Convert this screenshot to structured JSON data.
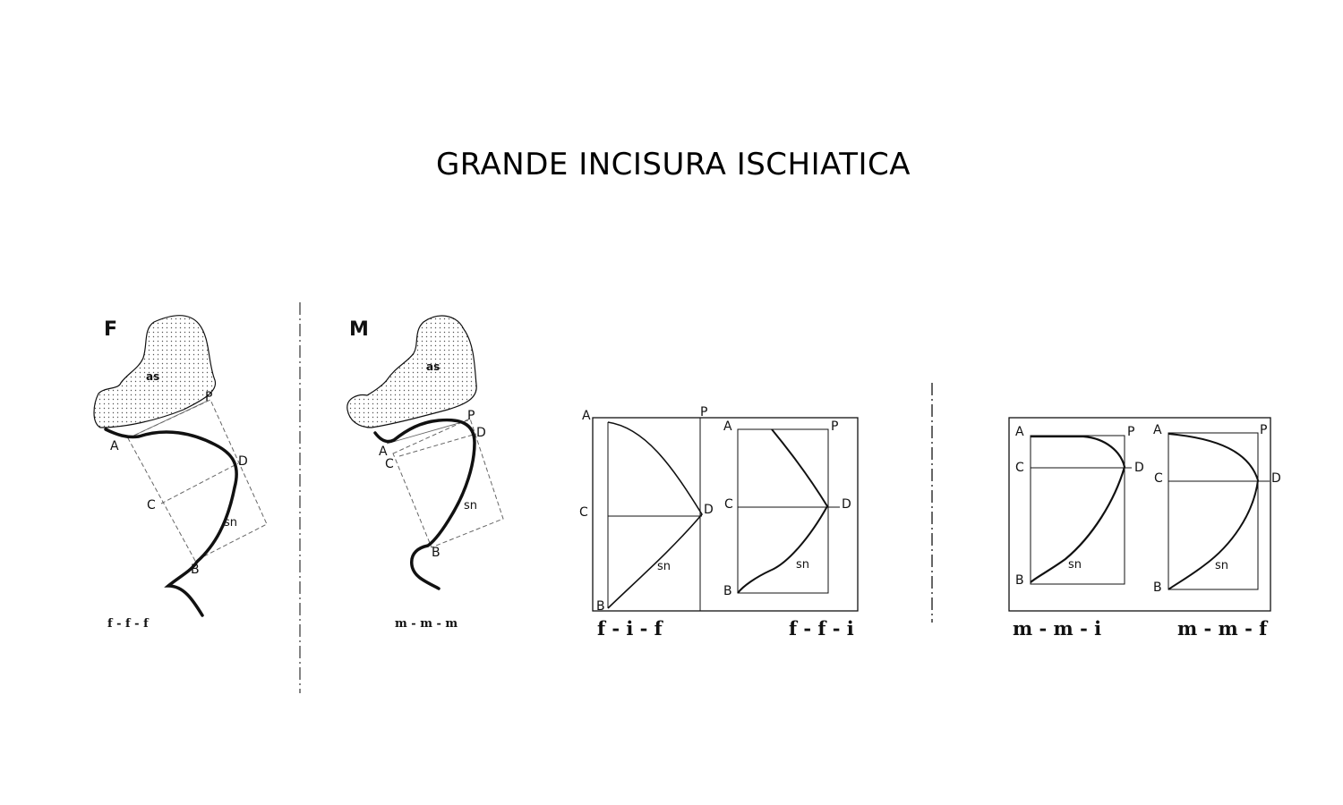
{
  "title": "GRANDE INCISURA ISCHIATICA",
  "panel_f": {
    "letter": "F",
    "as": "as",
    "sn": "sn",
    "caption": "f - f - f",
    "points": {
      "A": "A",
      "P": "P",
      "C": "C",
      "D": "D",
      "B": "B"
    }
  },
  "panel_m": {
    "letter": "M",
    "as": "as",
    "sn": "sn",
    "caption": "m - m - m",
    "points": {
      "A": "A",
      "P": "P",
      "C": "C",
      "D": "D",
      "B": "B"
    }
  },
  "schemes": [
    {
      "caption": "f - i - f",
      "sn": "sn",
      "points": {
        "A": "A",
        "P": "P",
        "C": "C",
        "D": "D",
        "B": "B"
      }
    },
    {
      "caption": "f - f - i",
      "sn": "sn",
      "points": {
        "A": "A",
        "P": "P",
        "C": "C",
        "D": "D",
        "B": "B"
      }
    },
    {
      "caption": "m - m - i",
      "sn": "sn",
      "points": {
        "A": "A",
        "P": "P",
        "C": "C",
        "D": "D",
        "B": "B"
      }
    },
    {
      "caption": "m - m - f",
      "sn": "sn",
      "points": {
        "A": "A",
        "P": "P",
        "C": "C",
        "D": "D",
        "B": "B"
      }
    }
  ]
}
